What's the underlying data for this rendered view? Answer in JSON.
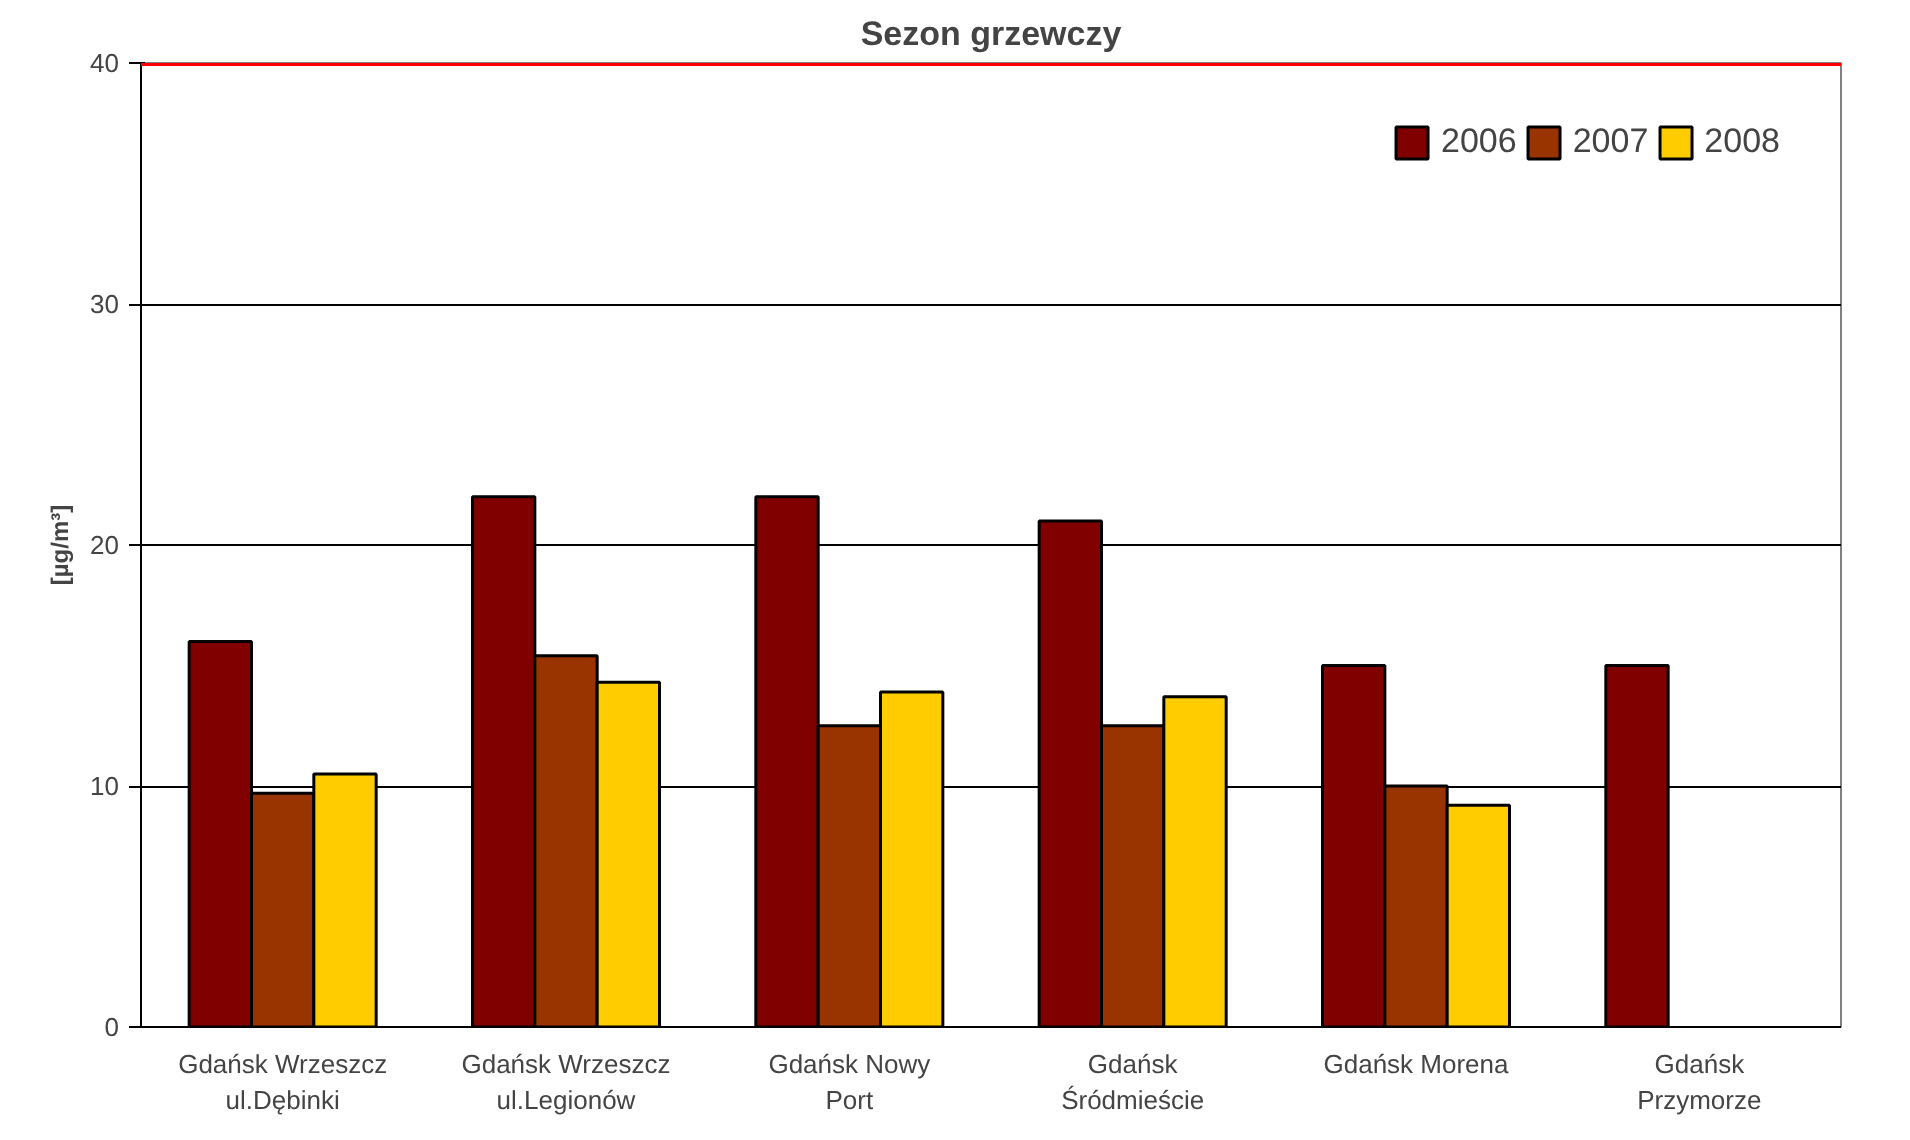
{
  "chart_data": {
    "type": "bar",
    "title": "Sezon grzewczy",
    "ylabel": "[µg/m³]",
    "categories": [
      "Gdańsk Wrzeszcz\nul.Dębinki",
      "Gdańsk Wrzeszcz\nul.Legionów",
      "Gdańsk Nowy\nPort",
      "Gdańsk\nŚródmieście",
      "Gdańsk Morena",
      "Gdańsk\nPrzymorze"
    ],
    "series": [
      {
        "name": "2006",
        "color": "#800000",
        "values": [
          16,
          22,
          22,
          21,
          15,
          15
        ]
      },
      {
        "name": "2007",
        "color": "#993300",
        "values": [
          9.7,
          15.4,
          12.5,
          12.5,
          10,
          null
        ]
      },
      {
        "name": "2008",
        "color": "#ffcc00",
        "values": [
          10.5,
          14.3,
          13.9,
          13.7,
          9.2,
          null
        ]
      }
    ],
    "ylim": [
      0,
      40
    ],
    "yticks": [
      0,
      10,
      20,
      30,
      40
    ],
    "grid": "y",
    "legend": "top right",
    "ref_lines": [
      {
        "axis": "y",
        "value": 40,
        "color": "#ff0000"
      }
    ]
  }
}
